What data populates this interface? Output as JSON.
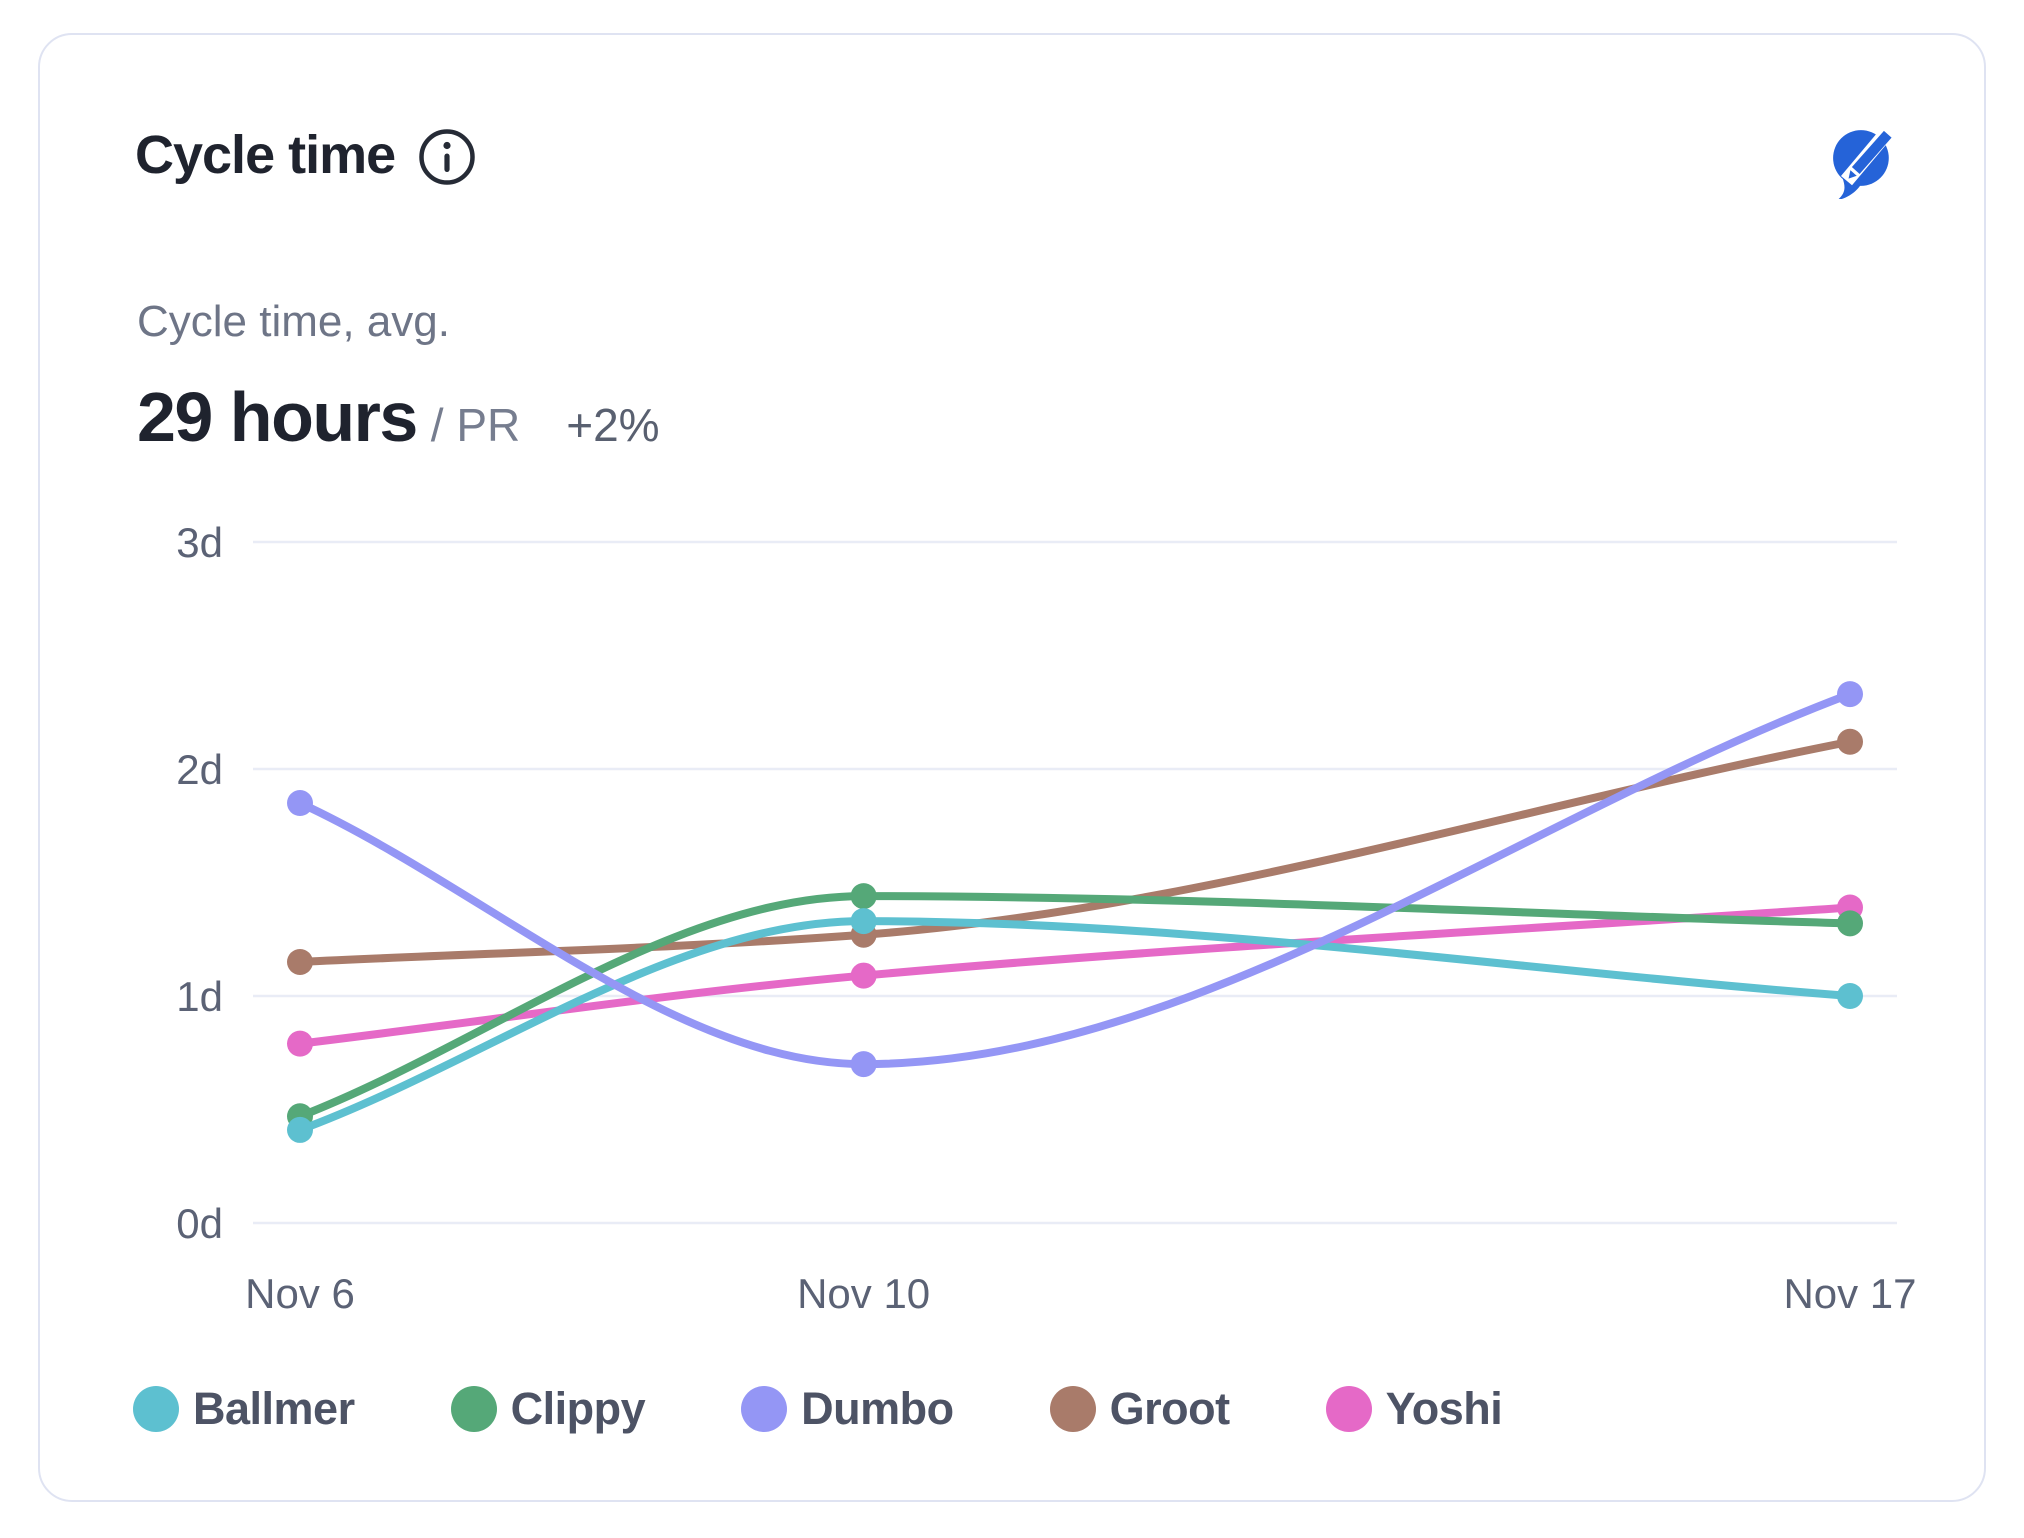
{
  "card": {
    "title": "Cycle time",
    "metric": {
      "label": "Cycle time, avg.",
      "value": "29 hours",
      "unit": "/ PR",
      "delta": "+2%"
    }
  },
  "icons": {
    "info_icon": "circled-i",
    "logo_icon": "speech-bubble-pencil",
    "logo_color": "#2563d8",
    "info_color": "#262b36"
  },
  "colors": {
    "card_border": "#dfe3f2",
    "grid_line": "#e9ecf6",
    "tick_text": "#5b6275",
    "title_text": "#1f232e",
    "muted_text": "#6e7587"
  },
  "chart_data": {
    "type": "line",
    "title": "Cycle time",
    "xlabel": "",
    "ylabel": "",
    "categories": [
      "Nov 6",
      "Nov 10",
      "Nov 17"
    ],
    "x_day_of_month": [
      6,
      10,
      17
    ],
    "ylim_days": [
      0,
      3
    ],
    "yticks": [
      {
        "value": 0,
        "label": "0d"
      },
      {
        "value": 1,
        "label": "1d"
      },
      {
        "value": 2,
        "label": "2d"
      },
      {
        "value": 3,
        "label": "3d"
      }
    ],
    "grid": "horizontal",
    "legend_position": "bottom",
    "curve": "monotone",
    "series": [
      {
        "name": "Ballmer",
        "color": "#5dc0d0",
        "values_days": [
          0.41,
          1.33,
          1.0
        ]
      },
      {
        "name": "Clippy",
        "color": "#55a878",
        "values_days": [
          0.47,
          1.44,
          1.32
        ]
      },
      {
        "name": "Dumbo",
        "color": "#9496f5",
        "values_days": [
          1.85,
          0.7,
          2.33
        ]
      },
      {
        "name": "Groot",
        "color": "#a97b6a",
        "values_days": [
          1.15,
          1.27,
          2.12
        ]
      },
      {
        "name": "Yoshi",
        "color": "#e569c7",
        "values_days": [
          0.79,
          1.09,
          1.39
        ]
      }
    ]
  }
}
